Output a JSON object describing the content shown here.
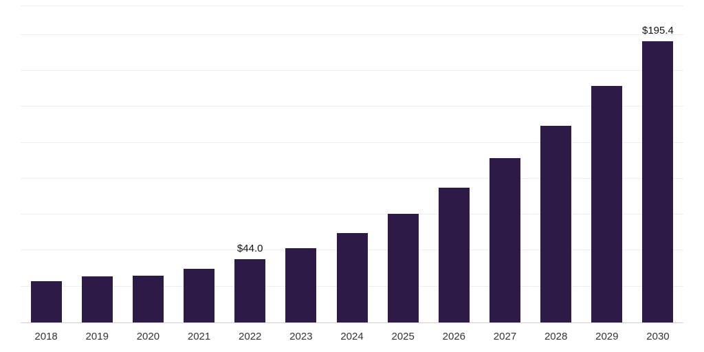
{
  "chart_data": {
    "type": "bar",
    "title": "",
    "xlabel": "",
    "ylabel": "",
    "categories": [
      "2018",
      "2019",
      "2020",
      "2021",
      "2022",
      "2023",
      "2024",
      "2025",
      "2026",
      "2027",
      "2028",
      "2029",
      "2030"
    ],
    "values": [
      28.8,
      32.1,
      32.6,
      37.4,
      44.0,
      51.7,
      62.3,
      75.7,
      93.9,
      114.5,
      137.0,
      164.3,
      195.4
    ],
    "data_labels": [
      {
        "index": 4,
        "text": "$44.0"
      },
      {
        "index": 12,
        "text": "$195.4"
      }
    ],
    "ylim": [
      0,
      220
    ],
    "grid": {
      "show": true,
      "step": 25
    },
    "legend": "none",
    "colors": {
      "bar": "#2e1a47",
      "grid": "#ededed",
      "axis_line": "#cfcfcf",
      "tick_label": "#333333",
      "data_label": "#111111",
      "background": "#ffffff"
    }
  }
}
